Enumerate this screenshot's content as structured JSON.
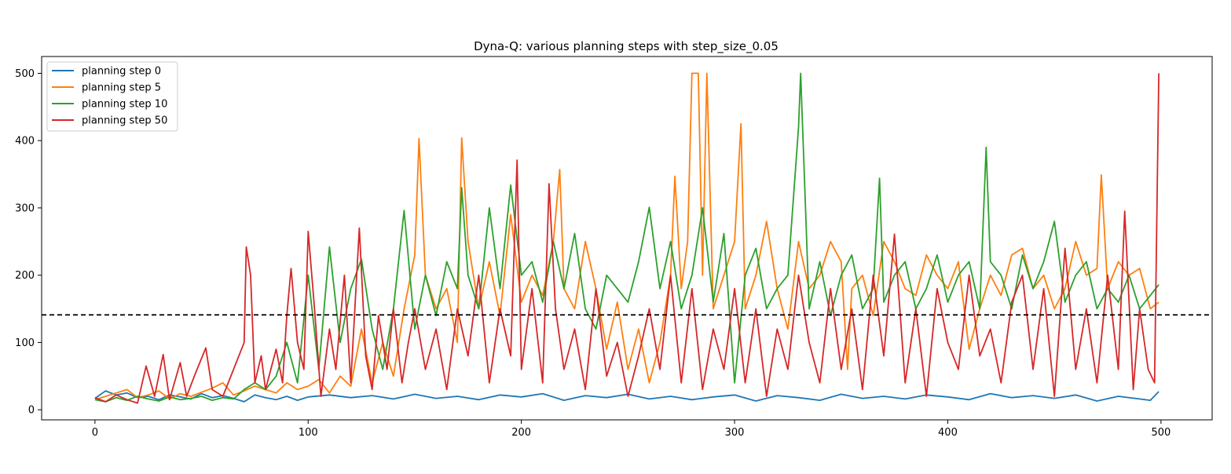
{
  "chart_data": {
    "type": "line",
    "title": "Dyna-Q: various planning steps with step_size_0.05",
    "xlabel": "",
    "ylabel": "",
    "xlim": [
      -25,
      524
    ],
    "ylim": [
      -15,
      525
    ],
    "xticks": [
      0,
      100,
      200,
      300,
      400,
      500
    ],
    "yticks": [
      0,
      100,
      200,
      300,
      400,
      500
    ],
    "grid": false,
    "legend_position": "top-left",
    "reference_line": {
      "y": 141,
      "style": "dashed",
      "color": "#000000"
    },
    "series": [
      {
        "name": "planning step 0",
        "color": "#1f77b4",
        "x": [
          0,
          5,
          10,
          15,
          20,
          25,
          30,
          35,
          40,
          45,
          50,
          55,
          60,
          65,
          70,
          75,
          80,
          85,
          90,
          95,
          100,
          110,
          120,
          130,
          140,
          150,
          160,
          170,
          180,
          190,
          200,
          210,
          220,
          230,
          240,
          250,
          260,
          270,
          280,
          290,
          300,
          310,
          320,
          330,
          340,
          350,
          360,
          370,
          380,
          390,
          400,
          410,
          420,
          430,
          440,
          450,
          460,
          470,
          480,
          490,
          495,
          499
        ],
        "y": [
          17,
          28,
          22,
          25,
          18,
          20,
          15,
          22,
          19,
          16,
          24,
          18,
          21,
          17,
          12,
          22,
          18,
          15,
          20,
          14,
          19,
          22,
          18,
          21,
          16,
          23,
          17,
          20,
          15,
          22,
          19,
          24,
          14,
          21,
          18,
          23,
          16,
          20,
          15,
          19,
          22,
          13,
          21,
          18,
          14,
          23,
          17,
          20,
          16,
          22,
          19,
          15,
          24,
          18,
          21,
          17,
          22,
          13,
          20,
          16,
          14,
          27
        ]
      },
      {
        "name": "planning step 5",
        "color": "#ff7f0e",
        "x": [
          0,
          5,
          10,
          15,
          20,
          25,
          30,
          35,
          40,
          45,
          50,
          55,
          60,
          65,
          70,
          75,
          80,
          85,
          90,
          95,
          100,
          105,
          110,
          115,
          120,
          125,
          130,
          135,
          140,
          145,
          150,
          152,
          155,
          160,
          165,
          170,
          172,
          175,
          180,
          185,
          190,
          195,
          200,
          205,
          210,
          215,
          218,
          220,
          225,
          230,
          235,
          240,
          245,
          250,
          255,
          260,
          265,
          270,
          272,
          275,
          278,
          280,
          283,
          285,
          287,
          290,
          295,
          300,
          303,
          305,
          310,
          315,
          320,
          325,
          330,
          335,
          340,
          345,
          350,
          353,
          355,
          360,
          365,
          370,
          375,
          380,
          385,
          390,
          395,
          400,
          405,
          410,
          415,
          420,
          425,
          430,
          435,
          440,
          445,
          450,
          455,
          460,
          465,
          470,
          472,
          475,
          480,
          485,
          490,
          495,
          499
        ],
        "y": [
          15,
          20,
          25,
          30,
          18,
          22,
          28,
          16,
          24,
          20,
          26,
          32,
          40,
          22,
          28,
          35,
          30,
          25,
          40,
          30,
          35,
          45,
          25,
          50,
          35,
          120,
          40,
          100,
          50,
          150,
          230,
          403,
          200,
          150,
          180,
          100,
          404,
          250,
          150,
          220,
          140,
          290,
          160,
          200,
          170,
          250,
          357,
          180,
          150,
          250,
          180,
          90,
          160,
          60,
          120,
          40,
          100,
          200,
          347,
          180,
          250,
          500,
          500,
          200,
          500,
          150,
          200,
          250,
          425,
          150,
          200,
          280,
          180,
          120,
          250,
          180,
          200,
          250,
          220,
          60,
          180,
          200,
          140,
          250,
          220,
          180,
          170,
          230,
          200,
          180,
          220,
          90,
          150,
          200,
          170,
          230,
          240,
          180,
          200,
          150,
          180,
          250,
          200,
          210,
          349,
          180,
          220,
          200,
          210,
          150,
          160
        ]
      },
      {
        "name": "planning step 10",
        "color": "#2ca02c",
        "x": [
          0,
          5,
          10,
          15,
          20,
          25,
          30,
          35,
          40,
          45,
          50,
          55,
          60,
          65,
          70,
          75,
          80,
          85,
          90,
          95,
          100,
          105,
          110,
          115,
          120,
          125,
          130,
          135,
          140,
          145,
          150,
          155,
          160,
          165,
          170,
          172,
          175,
          180,
          185,
          190,
          195,
          200,
          205,
          210,
          215,
          220,
          225,
          230,
          235,
          240,
          245,
          250,
          255,
          260,
          265,
          270,
          275,
          280,
          285,
          290,
          295,
          300,
          305,
          310,
          315,
          320,
          325,
          330,
          331,
          335,
          340,
          345,
          350,
          355,
          360,
          365,
          368,
          370,
          375,
          380,
          385,
          390,
          395,
          400,
          405,
          410,
          415,
          418,
          420,
          425,
          430,
          435,
          440,
          445,
          450,
          455,
          460,
          465,
          470,
          475,
          480,
          485,
          490,
          495,
          499
        ],
        "y": [
          15,
          12,
          18,
          14,
          20,
          16,
          13,
          19,
          15,
          17,
          20,
          14,
          18,
          16,
          30,
          40,
          30,
          50,
          100,
          40,
          200,
          60,
          242,
          100,
          180,
          224,
          120,
          60,
          150,
          296,
          120,
          200,
          140,
          220,
          180,
          330,
          200,
          150,
          300,
          180,
          334,
          200,
          220,
          160,
          250,
          180,
          262,
          150,
          120,
          200,
          180,
          160,
          220,
          301,
          180,
          250,
          150,
          200,
          300,
          160,
          262,
          40,
          200,
          240,
          150,
          180,
          200,
          420,
          500,
          150,
          220,
          140,
          200,
          230,
          150,
          180,
          344,
          160,
          200,
          220,
          150,
          180,
          230,
          160,
          200,
          220,
          150,
          390,
          220,
          200,
          150,
          230,
          180,
          220,
          280,
          160,
          200,
          220,
          150,
          180,
          160,
          200,
          150,
          170,
          186
        ]
      },
      {
        "name": "planning step 50",
        "color": "#d62728",
        "x": [
          0,
          5,
          10,
          15,
          20,
          24,
          28,
          32,
          35,
          40,
          43,
          47,
          52,
          55,
          60,
          65,
          70,
          71,
          73,
          75,
          78,
          80,
          85,
          88,
          90,
          92,
          95,
          98,
          100,
          103,
          106,
          110,
          113,
          117,
          120,
          124,
          127,
          130,
          133,
          137,
          140,
          144,
          147,
          150,
          155,
          160,
          165,
          170,
          175,
          180,
          185,
          190,
          195,
          198,
          200,
          205,
          210,
          213,
          216,
          220,
          225,
          230,
          235,
          240,
          245,
          250,
          255,
          260,
          265,
          270,
          275,
          280,
          285,
          290,
          295,
          300,
          305,
          310,
          315,
          320,
          325,
          330,
          335,
          340,
          345,
          350,
          355,
          360,
          365,
          370,
          375,
          380,
          385,
          390,
          395,
          400,
          405,
          410,
          415,
          420,
          425,
          430,
          435,
          440,
          445,
          450,
          455,
          460,
          465,
          470,
          475,
          480,
          483,
          487,
          490,
          494,
          497,
          499
        ],
        "y": [
          18,
          12,
          22,
          15,
          10,
          65,
          20,
          82,
          15,
          70,
          20,
          53,
          92,
          30,
          20,
          60,
          100,
          242,
          200,
          40,
          80,
          30,
          90,
          40,
          140,
          210,
          100,
          60,
          265,
          150,
          20,
          120,
          60,
          200,
          40,
          270,
          80,
          30,
          140,
          60,
          150,
          40,
          100,
          150,
          60,
          120,
          30,
          150,
          80,
          200,
          40,
          150,
          80,
          371,
          60,
          180,
          40,
          336,
          150,
          60,
          120,
          30,
          180,
          50,
          100,
          20,
          80,
          150,
          60,
          200,
          40,
          180,
          30,
          120,
          60,
          180,
          40,
          150,
          20,
          120,
          60,
          200,
          100,
          40,
          180,
          60,
          150,
          30,
          200,
          80,
          261,
          40,
          150,
          20,
          180,
          100,
          60,
          200,
          80,
          120,
          40,
          160,
          200,
          60,
          180,
          20,
          240,
          60,
          150,
          40,
          200,
          60,
          295,
          30,
          150,
          60,
          40,
          500
        ]
      }
    ]
  }
}
